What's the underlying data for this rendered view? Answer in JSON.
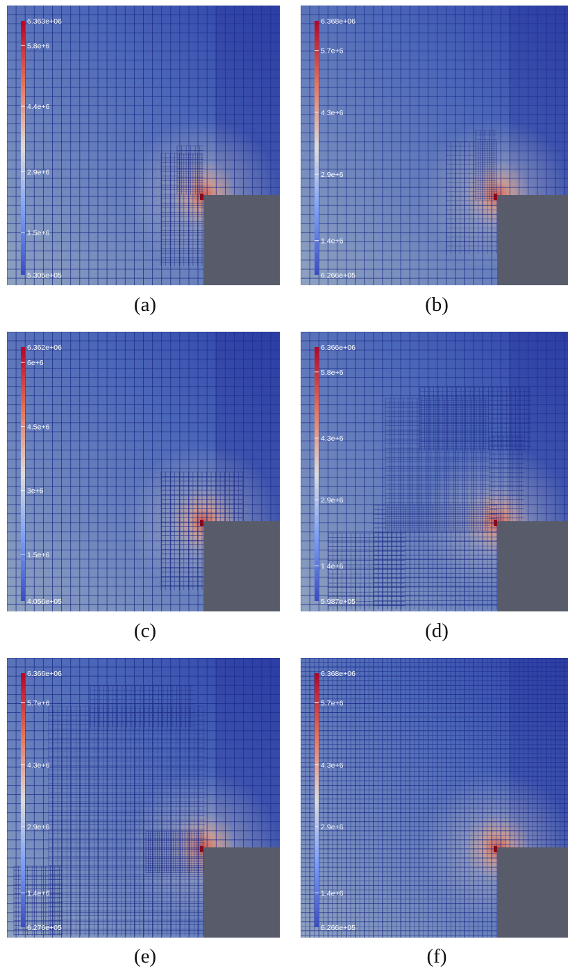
{
  "figure": {
    "panels": [
      {
        "caption": "(a)",
        "colorbar": {
          "max_label": "6.363e+06",
          "min_label": "5.305e+05",
          "ticks": [
            {
              "label": "5.8e+6",
              "value": 5800000.0
            },
            {
              "label": "4.4e+6",
              "value": 4400000.0
            },
            {
              "label": "2.9e+6",
              "value": 2900000.0
            },
            {
              "label": "1.5e+6",
              "value": 1500000.0
            }
          ]
        }
      },
      {
        "caption": "(b)",
        "colorbar": {
          "max_label": "6.368e+06",
          "min_label": "6.266e+05",
          "ticks": [
            {
              "label": "5.7e+6",
              "value": 5700000.0
            },
            {
              "label": "4.3e+6",
              "value": 4300000.0
            },
            {
              "label": "2.9e+6",
              "value": 2900000.0
            },
            {
              "label": "1.4e+6",
              "value": 1400000.0
            }
          ]
        }
      },
      {
        "caption": "(c)",
        "colorbar": {
          "max_label": "6.362e+06",
          "min_label": "4.056e+05",
          "ticks": [
            {
              "label": "6e+6",
              "value": 6000000.0
            },
            {
              "label": "4.5e+6",
              "value": 4500000.0
            },
            {
              "label": "3e+6",
              "value": 3000000.0
            },
            {
              "label": "1.5e+6",
              "value": 1500000.0
            }
          ]
        }
      },
      {
        "caption": "(d)",
        "colorbar": {
          "max_label": "6.366e+06",
          "min_label": "5.987e+05",
          "ticks": [
            {
              "label": "5.8e+6",
              "value": 5800000.0
            },
            {
              "label": "4.3e+6",
              "value": 4300000.0
            },
            {
              "label": "2.9e+6",
              "value": 2900000.0
            },
            {
              "label": "1.4e+6",
              "value": 1400000.0
            }
          ]
        }
      },
      {
        "caption": "(e)",
        "colorbar": {
          "max_label": "6.366e+06",
          "min_label": "6.276e+05",
          "ticks": [
            {
              "label": "5.7e+6",
              "value": 5700000.0
            },
            {
              "label": "4.3e+6",
              "value": 4300000.0
            },
            {
              "label": "2.9e+6",
              "value": 2900000.0
            },
            {
              "label": "1.4e+6",
              "value": 1400000.0
            }
          ]
        }
      },
      {
        "caption": "(f)",
        "colorbar": {
          "max_label": "6.368e+06",
          "min_label": "6.266e+05",
          "ticks": [
            {
              "label": "5.7e+6",
              "value": 5700000.0
            },
            {
              "label": "4.3e+6",
              "value": 4300000.0
            },
            {
              "label": "2.9e+6",
              "value": 2900000.0
            },
            {
              "label": "1.4e+6",
              "value": 1400000.0
            }
          ]
        }
      }
    ],
    "colors": {
      "mesh_line": "#1f2d8a",
      "field_low": "#3b4cc0",
      "field_mid": "#9aa8c8",
      "field_high": "#b40426",
      "obstacle": "#585c6a"
    }
  }
}
